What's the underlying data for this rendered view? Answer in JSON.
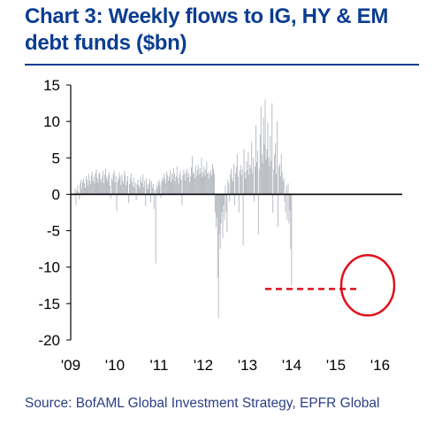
{
  "title": "Chart 3: Weekly flows to IG, HY & EM debt funds ($bn)",
  "source": "Source: BofAML Global Investment Strategy, EPFR Global",
  "colors": {
    "title": "#0b3d91",
    "bars": "#b9bdc4",
    "highlight": "#e0101b",
    "axis": "#000000"
  },
  "chart_data": {
    "type": "bar",
    "title": "Chart 3: Weekly flows to IG, HY & EM debt funds ($bn)",
    "xlabel": "",
    "ylabel": "",
    "ylim": [
      -20,
      15
    ],
    "yticks": [
      15,
      10,
      5,
      0,
      -5,
      -10,
      -15,
      -20
    ],
    "xticks": [
      "'09",
      "'10",
      "'11",
      "'12",
      "'13",
      "'14",
      "'15",
      "'16"
    ],
    "x_range": [
      2009.0,
      2016.3
    ],
    "grid": false,
    "series": [
      {
        "x_start": 2009.1,
        "x_step": 0.0192,
        "values": [
          0.8,
          -1.5,
          0.5,
          1.2,
          0.3,
          -0.7,
          1.5,
          2.0,
          0.8,
          1.8,
          2.2,
          1.5,
          0.9,
          2.5,
          2.0,
          1.2,
          2.8,
          1.9,
          1.4,
          2.6,
          3.1,
          1.8,
          2.4,
          1.5,
          2.9,
          3.4,
          2.2,
          1.6,
          2.8,
          3.0,
          2.1,
          1.7,
          2.4,
          3.2,
          1.5,
          2.7,
          3.5,
          2.3,
          1.8,
          2.6,
          3.0,
          1.2,
          -0.6,
          2.2,
          1.9,
          2.8,
          3.3,
          1.6,
          2.5,
          -2.3,
          1.7,
          2.1,
          3.0,
          2.4,
          1.3,
          2.7,
          1.9,
          1.5,
          3.2,
          2.6,
          1.2,
          1.8,
          2.5,
          -1.2,
          1.4,
          2.2,
          2.9,
          1.7,
          1.1,
          2.3,
          0.9,
          1.6,
          -0.8,
          1.4,
          2.0,
          1.2,
          0.8,
          2.4,
          1.8,
          1.5,
          2.7,
          1.0,
          1.9,
          -1.6,
          2.2,
          1.3,
          0.7,
          1.5,
          2.1,
          -1.1,
          1.8,
          0.9,
          1.4,
          -2.0,
          0.6,
          -9.5,
          1.2,
          0.8,
          1.6,
          2.0,
          1.3,
          -0.5,
          1.8,
          2.3,
          1.9,
          2.8,
          2.2,
          1.5,
          3.1,
          2.6,
          1.9,
          2.4,
          3.3,
          1.7,
          2.8,
          2.1,
          3.6,
          2.9,
          1.8,
          2.5,
          3.8,
          2.2,
          1.4,
          2.7,
          3.2,
          2.0,
          -1.5,
          2.6,
          3.4,
          2.8,
          1.9,
          3.0,
          3.5,
          2.3,
          2.9,
          1.6,
          2.4,
          3.7,
          5.2,
          2.8,
          3.1,
          2.2,
          3.9,
          2.5,
          3.3,
          4.1,
          2.7,
          3.6,
          2.9,
          5.0,
          2.4,
          3.1,
          3.8,
          2.6,
          3.4,
          4.5,
          2.8,
          3.0,
          2.1,
          2.9,
          3.3,
          2.6,
          4.2,
          3.5,
          2.8,
          -2.5,
          -4.5,
          -3.2,
          -11.5,
          -17.0,
          -5.5,
          -7.5,
          -4.0,
          -2.5,
          -6.0,
          -1.5,
          -3.5,
          1.2,
          -2.5,
          -5.2,
          2.0,
          1.5,
          -1.0,
          2.8,
          3.5,
          2.2,
          1.8,
          4.2,
          -1.5,
          2.9,
          3.8,
          5.5,
          2.4,
          -2.5,
          3.2,
          4.0,
          2.6,
          3.5,
          -7.0,
          6.2,
          3.0,
          2.1,
          4.5,
          3.3,
          5.8,
          2.7,
          4.1,
          3.6,
          7.2,
          2.9,
          5.0,
          -1.0,
          3.8,
          9.5,
          4.4,
          6.0,
          -5.5,
          3.5,
          8.2,
          12.0,
          5.5,
          4.3,
          10.5,
          6.8,
          13.0,
          4.8,
          6.2,
          9.8,
          5.1,
          3.9,
          8.0,
          4.6,
          12.5,
          -2.5,
          3.4,
          5.5,
          7.0,
          2.8,
          10.0,
          -4.5,
          3.8,
          4.2,
          2.5,
          5.5,
          3.0,
          1.8,
          2.2,
          -1.0,
          -2.5,
          1.2,
          -3.5,
          1.5,
          -4.0,
          -2.2,
          -7.5,
          -12.5
        ]
      }
    ],
    "annotations": [
      {
        "type": "dashed-line",
        "color": "red",
        "x_from": 2013.4,
        "x_to": 2015.55,
        "y": -13
      },
      {
        "type": "circle",
        "color": "red",
        "x": 2015.72,
        "y": -12.5
      }
    ]
  }
}
